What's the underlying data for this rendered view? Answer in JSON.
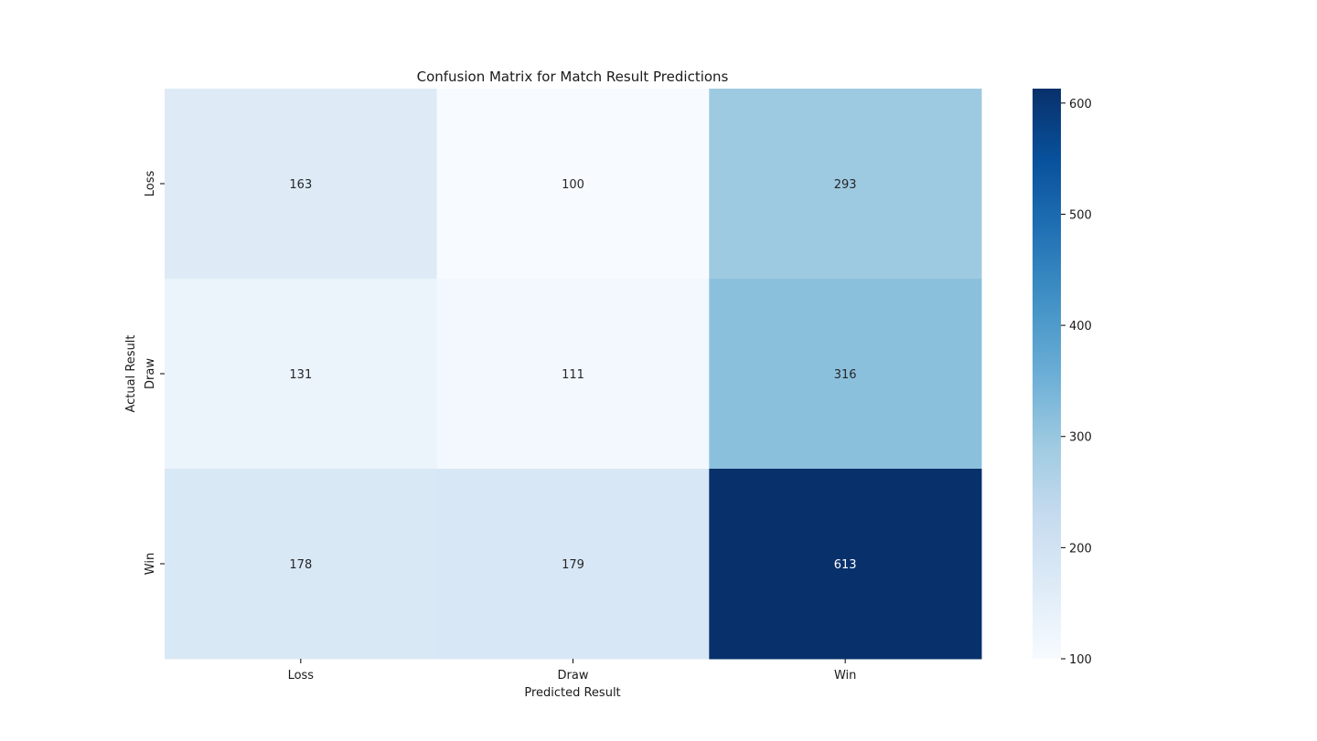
{
  "chart_data": {
    "type": "heatmap",
    "title": "Confusion Matrix for Match Result Predictions",
    "xlabel": "Predicted Result",
    "ylabel": "Actual Result",
    "x_categories": [
      "Loss",
      "Draw",
      "Win"
    ],
    "y_categories": [
      "Loss",
      "Draw",
      "Win"
    ],
    "values": [
      [
        163,
        100,
        293
      ],
      [
        131,
        111,
        316
      ],
      [
        178,
        179,
        613
      ]
    ],
    "colormap": "Blues",
    "color_range": [
      100,
      613
    ],
    "colorbar_ticks": [
      100,
      200,
      300,
      400,
      500,
      600
    ],
    "colorbar_tick_labels": [
      "100",
      "200",
      "300",
      "400",
      "500",
      "600"
    ],
    "grid": false
  }
}
